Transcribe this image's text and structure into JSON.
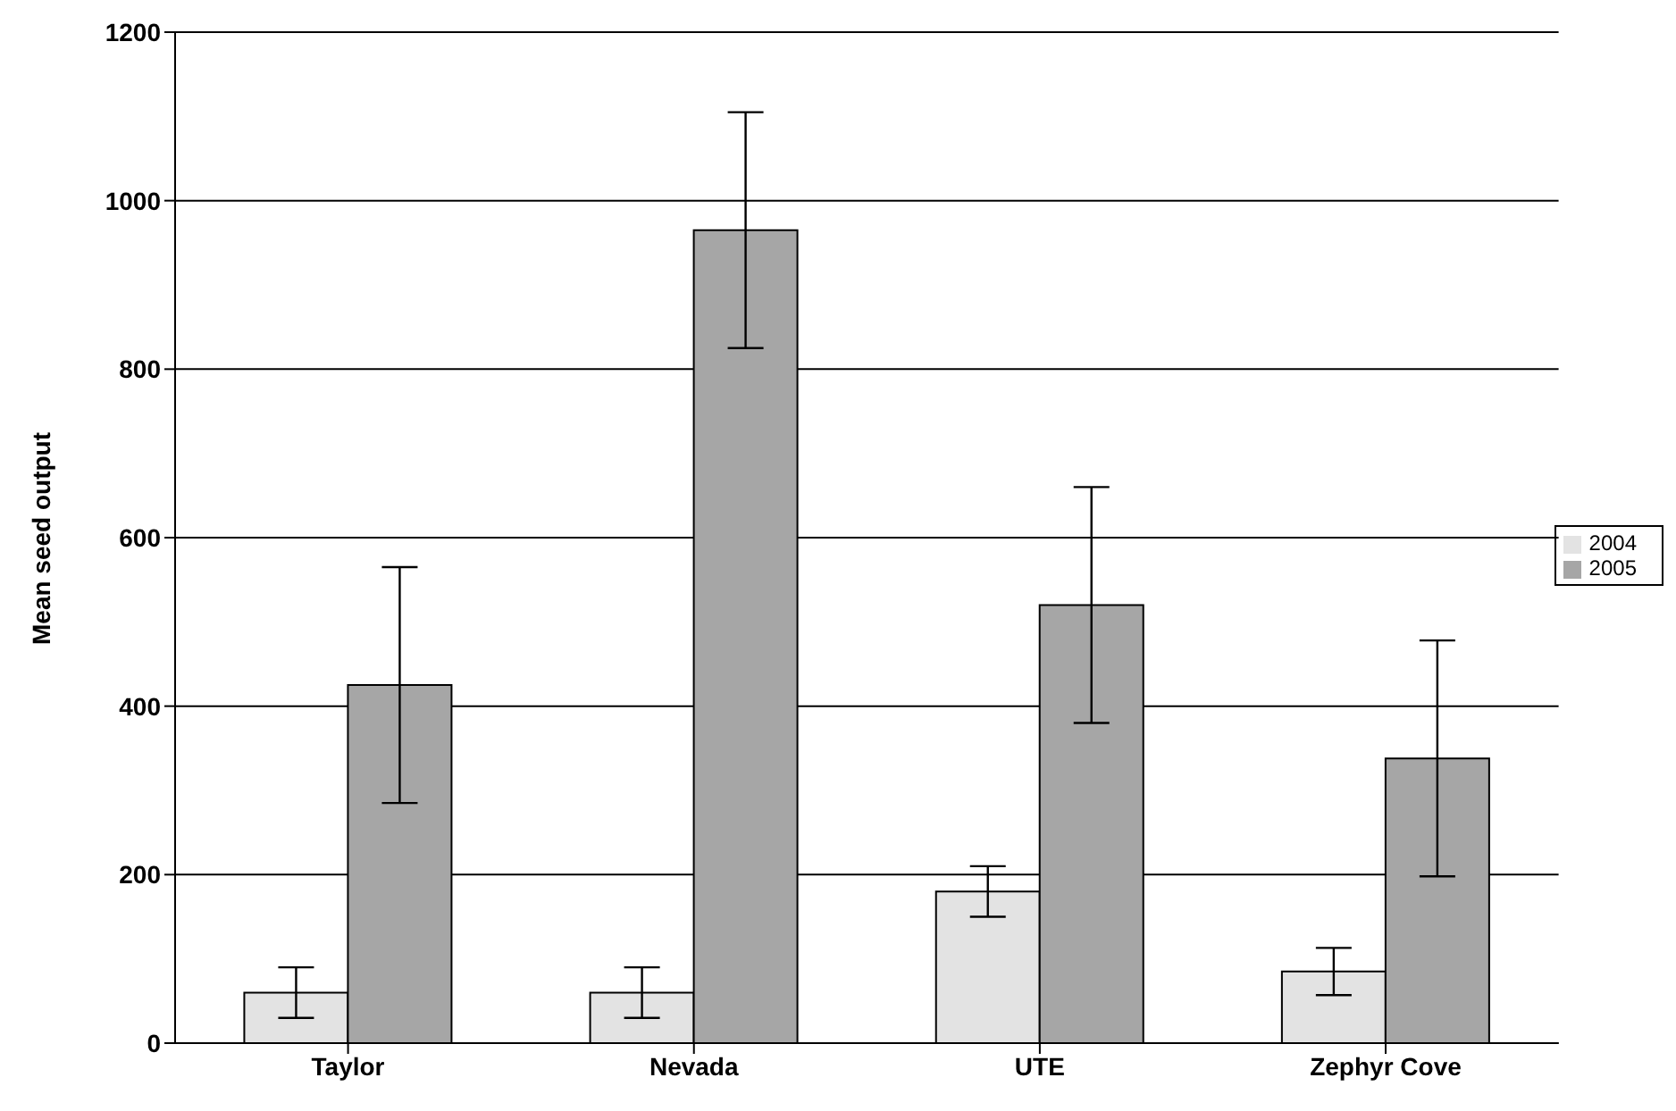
{
  "chart_data": {
    "type": "bar",
    "ylabel": "Mean seed output",
    "categories": [
      "Taylor",
      "Nevada",
      "UTE",
      "Zephyr Cove"
    ],
    "series": [
      {
        "name": "2004",
        "color": "#e3e3e3",
        "values": [
          60,
          60,
          180,
          85
        ],
        "errors": [
          30,
          30,
          30,
          28
        ]
      },
      {
        "name": "2005",
        "color": "#a6a6a6",
        "values": [
          425,
          965,
          520,
          338
        ],
        "errors": [
          140,
          140,
          140,
          140
        ]
      }
    ],
    "ylim": [
      0,
      1200
    ],
    "yticks": [
      0,
      200,
      400,
      600,
      800,
      1000,
      1200
    ],
    "grid": "y",
    "legend": "right"
  }
}
